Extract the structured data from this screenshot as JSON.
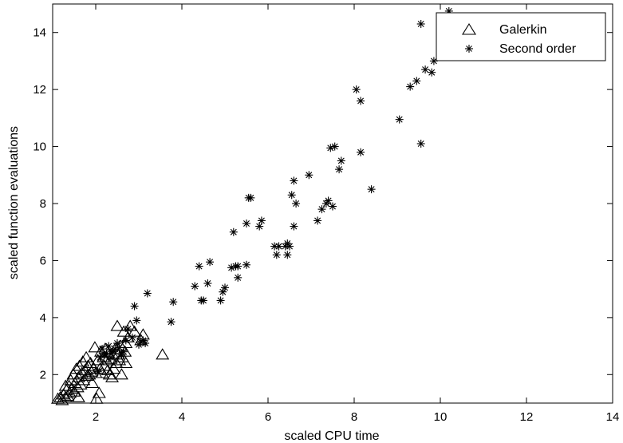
{
  "chart_data": {
    "type": "scatter",
    "title": "",
    "xlabel": "scaled CPU time",
    "ylabel": "scaled function evaluations",
    "xlim": [
      1,
      14
    ],
    "ylim": [
      1,
      15
    ],
    "xticks": [
      2,
      4,
      6,
      8,
      10,
      12,
      14
    ],
    "yticks": [
      2,
      4,
      6,
      8,
      10,
      12,
      14
    ],
    "grid": false,
    "legend_position": "top-right",
    "series": [
      {
        "name": "Galerkin",
        "marker": "triangle",
        "color": "#000000",
        "points": [
          [
            1.12,
            1.15
          ],
          [
            1.18,
            1.2
          ],
          [
            1.22,
            1.1
          ],
          [
            1.25,
            1.3
          ],
          [
            1.3,
            1.2
          ],
          [
            1.32,
            1.45
          ],
          [
            1.35,
            1.25
          ],
          [
            1.38,
            1.6
          ],
          [
            1.4,
            1.35
          ],
          [
            1.42,
            1.8
          ],
          [
            1.45,
            1.5
          ],
          [
            1.48,
            2.0
          ],
          [
            1.5,
            1.4
          ],
          [
            1.52,
            1.7
          ],
          [
            1.55,
            2.2
          ],
          [
            1.58,
            1.55
          ],
          [
            1.6,
            1.9
          ],
          [
            1.62,
            2.3
          ],
          [
            1.65,
            1.65
          ],
          [
            1.68,
            2.05
          ],
          [
            1.7,
            2.45
          ],
          [
            1.72,
            1.8
          ],
          [
            1.75,
            2.15
          ],
          [
            1.78,
            2.6
          ],
          [
            1.8,
            1.95
          ],
          [
            1.82,
            2.3
          ],
          [
            1.85,
            2.0
          ],
          [
            1.88,
            2.4
          ],
          [
            1.9,
            2.1
          ],
          [
            1.92,
            1.7
          ],
          [
            1.95,
            2.2
          ],
          [
            1.98,
            2.95
          ],
          [
            2.0,
            2.05
          ],
          [
            2.02,
            1.15
          ],
          [
            2.05,
            2.5
          ],
          [
            2.08,
            1.35
          ],
          [
            2.1,
            2.2
          ],
          [
            2.12,
            2.8
          ],
          [
            2.15,
            2.05
          ],
          [
            2.18,
            2.6
          ],
          [
            2.2,
            2.3
          ],
          [
            2.22,
            2.9
          ],
          [
            2.25,
            2.5
          ],
          [
            2.28,
            2.15
          ],
          [
            2.3,
            2.75
          ],
          [
            2.32,
            2.0
          ],
          [
            2.35,
            2.55
          ],
          [
            2.38,
            1.9
          ],
          [
            2.4,
            2.7
          ],
          [
            2.42,
            2.2
          ],
          [
            2.45,
            2.9
          ],
          [
            2.48,
            2.4
          ],
          [
            2.5,
            3.7
          ],
          [
            2.52,
            2.7
          ],
          [
            2.55,
            2.5
          ],
          [
            2.58,
            3.0
          ],
          [
            2.6,
            2.0
          ],
          [
            2.62,
            2.6
          ],
          [
            2.65,
            3.5
          ],
          [
            2.68,
            2.8
          ],
          [
            2.7,
            3.1
          ],
          [
            2.75,
            3.3
          ],
          [
            2.8,
            3.7
          ],
          [
            2.9,
            3.5
          ],
          [
            3.05,
            3.2
          ],
          [
            3.1,
            3.4
          ],
          [
            3.55,
            2.7
          ],
          [
            1.6,
            1.2
          ],
          [
            1.3,
            1.6
          ],
          [
            2.7,
            2.4
          ]
        ]
      },
      {
        "name": "Second order",
        "marker": "asterisk",
        "color": "#000000",
        "points": [
          [
            2.05,
            2.1
          ],
          [
            2.1,
            2.6
          ],
          [
            2.15,
            2.9
          ],
          [
            2.2,
            2.7
          ],
          [
            2.25,
            2.75
          ],
          [
            2.3,
            3.0
          ],
          [
            2.35,
            2.6
          ],
          [
            2.4,
            2.8
          ],
          [
            2.45,
            2.9
          ],
          [
            2.5,
            3.1
          ],
          [
            2.55,
            2.95
          ],
          [
            2.6,
            2.7
          ],
          [
            2.65,
            2.8
          ],
          [
            2.7,
            3.2
          ],
          [
            2.75,
            3.6
          ],
          [
            2.85,
            3.3
          ],
          [
            2.9,
            4.4
          ],
          [
            2.95,
            3.9
          ],
          [
            3.0,
            3.05
          ],
          [
            3.05,
            3.15
          ],
          [
            3.1,
            3.2
          ],
          [
            3.15,
            3.1
          ],
          [
            3.2,
            4.85
          ],
          [
            3.75,
            3.85
          ],
          [
            3.8,
            4.55
          ],
          [
            4.3,
            5.1
          ],
          [
            4.4,
            5.8
          ],
          [
            4.45,
            4.6
          ],
          [
            4.5,
            4.6
          ],
          [
            4.6,
            5.2
          ],
          [
            4.65,
            5.95
          ],
          [
            4.9,
            4.6
          ],
          [
            4.95,
            4.9
          ],
          [
            5.0,
            5.05
          ],
          [
            5.15,
            5.75
          ],
          [
            5.2,
            7.0
          ],
          [
            5.25,
            5.8
          ],
          [
            5.3,
            5.8
          ],
          [
            5.3,
            5.4
          ],
          [
            5.5,
            7.3
          ],
          [
            5.5,
            5.85
          ],
          [
            5.55,
            8.2
          ],
          [
            5.6,
            8.2
          ],
          [
            5.8,
            7.2
          ],
          [
            5.85,
            7.4
          ],
          [
            6.15,
            6.5
          ],
          [
            6.2,
            6.2
          ],
          [
            6.25,
            6.5
          ],
          [
            6.25,
            6.5
          ],
          [
            6.4,
            6.5
          ],
          [
            6.45,
            6.6
          ],
          [
            6.45,
            6.2
          ],
          [
            6.5,
            6.5
          ],
          [
            6.55,
            8.3
          ],
          [
            6.6,
            8.8
          ],
          [
            6.6,
            7.2
          ],
          [
            6.65,
            8.0
          ],
          [
            6.95,
            9.0
          ],
          [
            7.15,
            7.4
          ],
          [
            7.25,
            7.8
          ],
          [
            7.35,
            8.0
          ],
          [
            7.4,
            8.1
          ],
          [
            7.45,
            9.95
          ],
          [
            7.5,
            7.9
          ],
          [
            7.55,
            10.0
          ],
          [
            7.65,
            9.2
          ],
          [
            7.7,
            9.5
          ],
          [
            8.05,
            12.0
          ],
          [
            8.15,
            9.8
          ],
          [
            8.15,
            11.6
          ],
          [
            8.4,
            8.5
          ],
          [
            9.05,
            10.95
          ],
          [
            9.3,
            12.1
          ],
          [
            9.45,
            12.3
          ],
          [
            9.55,
            10.1
          ],
          [
            9.55,
            14.3
          ],
          [
            9.65,
            12.7
          ],
          [
            9.8,
            12.6
          ],
          [
            9.85,
            13.0
          ],
          [
            10.2,
            14.75
          ]
        ]
      }
    ]
  }
}
